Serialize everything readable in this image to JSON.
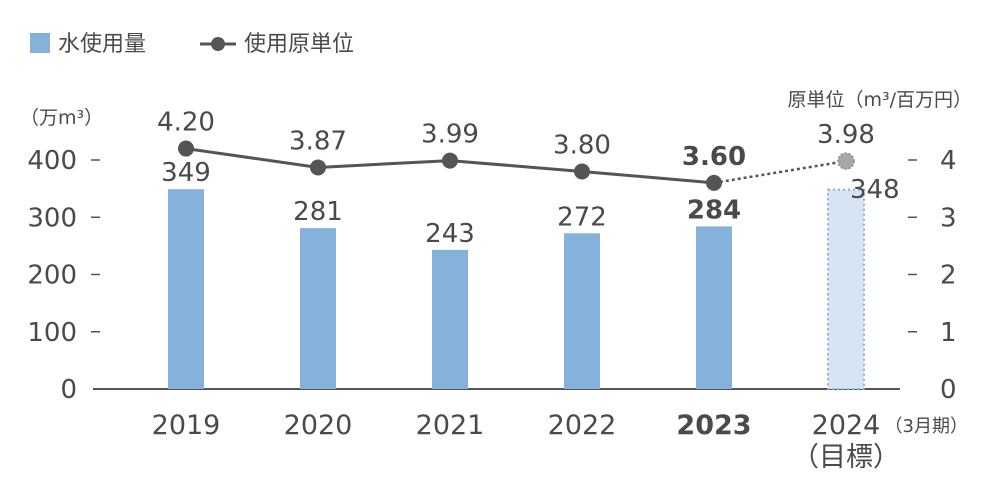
{
  "legend": {
    "bar_label": "水使用量",
    "line_label": "使用原単位"
  },
  "left_unit": "（万m³）",
  "right_unit": "原単位（m³/百万円）",
  "x_suffix": "（3月期）",
  "colors": {
    "bar": "#84b2db",
    "bar_target_fill": "#d6e4f3",
    "bar_target_border": "#84b2db",
    "line": "#555555",
    "target_marker": "#a8a8a8",
    "axis": "#555555"
  },
  "chart_data": {
    "type": "bar+line",
    "categories": [
      "2019",
      "2020",
      "2021",
      "2022",
      "2023",
      "2024"
    ],
    "category_sub": [
      "",
      "",
      "",
      "",
      "",
      "（目標）"
    ],
    "bold_category": "2023",
    "target_category": "2024",
    "series": [
      {
        "name": "水使用量",
        "type": "bar",
        "axis": "left",
        "values": [
          349,
          281,
          243,
          272,
          284,
          348
        ],
        "value_labels": [
          "349",
          "281",
          "243",
          "272",
          "284",
          "348"
        ]
      },
      {
        "name": "使用原単位",
        "type": "line",
        "axis": "right",
        "values": [
          4.2,
          3.87,
          3.99,
          3.8,
          3.6,
          3.98
        ],
        "value_labels": [
          "4.20",
          "3.87",
          "3.99",
          "3.80",
          "3.60",
          "3.98"
        ]
      }
    ],
    "left_axis": {
      "ylim": [
        0,
        400
      ],
      "ticks": [
        "0",
        "100",
        "200",
        "300",
        "400"
      ]
    },
    "right_axis": {
      "ylim": [
        0,
        4
      ],
      "ticks": [
        "0",
        "1",
        "2",
        "3",
        "4"
      ]
    },
    "bar_scale_note": "",
    "legend_position": "top-left",
    "grid": false
  }
}
